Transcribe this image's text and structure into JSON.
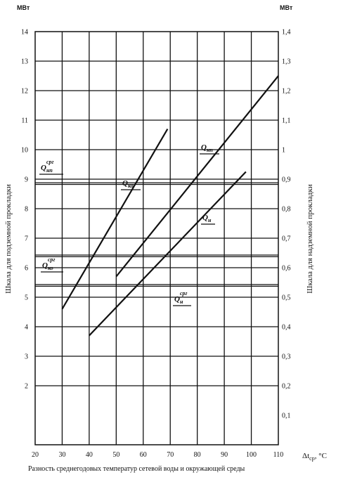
{
  "chart_data": {
    "type": "line",
    "title": "",
    "x_axis": {
      "label": "Разность среднегодовых температур сетевой воды и окружающей среды",
      "symbol": "Δt",
      "symbol_sub": "ср",
      "symbol_unit": ", °С",
      "range": [
        20,
        110
      ],
      "ticks": [
        20,
        30,
        40,
        50,
        60,
        70,
        80,
        90,
        100,
        110
      ]
    },
    "y_axis_left": {
      "label": "Шкала для подземной прокладки",
      "unit": "МВт",
      "range": [
        0,
        14
      ],
      "ticks": [
        2,
        3,
        4,
        5,
        6,
        7,
        8,
        9,
        10,
        11,
        12,
        13,
        14
      ],
      "tick_labels": [
        "2",
        "3",
        "4",
        "5",
        "6",
        "7",
        "8",
        "9",
        "10",
        "11",
        "12",
        "13",
        "14"
      ]
    },
    "y_axis_right": {
      "label": "Шкала для надземной прокладки",
      "unit": "МВт",
      "range": [
        0,
        1.4
      ],
      "ticks": [
        0.1,
        0.2,
        0.3,
        0.4,
        0.5,
        0.6,
        0.7,
        0.8,
        0.9,
        1.0,
        1.1,
        1.2,
        1.3,
        1.4
      ],
      "tick_labels": [
        "0,1",
        "0,2",
        "0,3",
        "0,4",
        "0,5",
        "0,6",
        "0,7",
        "0,8",
        "0,9",
        "1",
        "1,1",
        "1,2",
        "1,3",
        "1,4"
      ]
    },
    "grid": true,
    "series": [
      {
        "name": "Q",
        "sub": "ко",
        "sup": "",
        "x": [
          30,
          69
        ],
        "y": [
          4.6,
          10.7
        ]
      },
      {
        "name": "Q",
        "sub": "нп",
        "sup": "",
        "x": [
          50,
          110
        ],
        "y": [
          5.7,
          12.5
        ]
      },
      {
        "name": "Q",
        "sub": "н",
        "sup": "",
        "x": [
          40,
          98
        ],
        "y": [
          3.7,
          9.25
        ]
      }
    ],
    "reference_lines": [
      {
        "name": "Q",
        "sub": "нп",
        "sup": "срг",
        "y": 8.85
      },
      {
        "name": "Q",
        "sub": "ко",
        "sup": "срг",
        "y": 6.4
      },
      {
        "name": "Q",
        "sub": "н",
        "sup": "срг",
        "y": 5.4
      }
    ]
  }
}
